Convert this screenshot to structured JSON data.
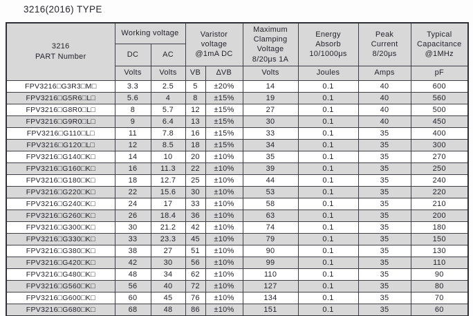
{
  "title": "3216(2016) TYPE",
  "colors": {
    "header_bg": "#d8d8d8",
    "alt_row_bg": "#d8d8d8",
    "row_bg": "#ffffff",
    "border": "#3d3d44",
    "text": "#23232b"
  },
  "table": {
    "header": {
      "part_number": "3216\nPART Number",
      "working_voltage": "Working voltage",
      "dc": "DC",
      "ac": "AC",
      "varistor_voltage": "Varistor\nvoltage\n@1mA DC",
      "max_clamping": "Maximum\nClamping\nVoltage\n8/20μs 1A",
      "energy_absorb": "Energy\nAbsorb\n10/1000μs",
      "peak_current": "Peak\nCurrent\n8/20μs",
      "typical_capacitance": "Typical\nCapacitance\n@1MHz",
      "units": [
        "Volts",
        "Volts",
        "VB",
        "∆VB",
        "Volts",
        "Joules",
        "Amps",
        "pF"
      ]
    },
    "rows": [
      [
        "FPV3216□G3R3□M□",
        "3.3",
        "2.5",
        "5",
        "±20%",
        "14",
        "0.1",
        "40",
        "600"
      ],
      [
        "FPV3216□G5R6□L□",
        "5.6",
        "4",
        "8",
        "±15%",
        "19",
        "0.1",
        "40",
        "560"
      ],
      [
        "FPV3216□G8R0□L□",
        "8",
        "5.7",
        "12",
        "±15%",
        "27",
        "0.1",
        "40",
        "500"
      ],
      [
        "FPV3216□G9R0□L□",
        "9",
        "6.4",
        "13",
        "±15%",
        "30",
        "0.1",
        "40",
        "450"
      ],
      [
        "FPV3216□G110□L□",
        "11",
        "7.8",
        "16",
        "±15%",
        "33",
        "0.1",
        "35",
        "400"
      ],
      [
        "FPV3216□G120□L□",
        "12",
        "8.5",
        "18",
        "±15%",
        "34",
        "0.1",
        "35",
        "300"
      ],
      [
        "FPV3216□G140□K□",
        "14",
        "10",
        "20",
        "±10%",
        "35",
        "0.1",
        "35",
        "270"
      ],
      [
        "FPV3216□G160□K□",
        "16",
        "11.3",
        "22",
        "±10%",
        "39",
        "0.1",
        "35",
        "250"
      ],
      [
        "FPV3216□G180□K□",
        "18",
        "12.7",
        "25",
        "±10%",
        "44",
        "0.1",
        "35",
        "240"
      ],
      [
        "FPV3216□G220□K□",
        "22",
        "15.6",
        "30",
        "±10%",
        "53",
        "0.1",
        "35",
        "220"
      ],
      [
        "FPV3216□G240□K□",
        "24",
        "17",
        "33",
        "±10%",
        "58",
        "0.1",
        "35",
        "210"
      ],
      [
        "FPV3216□G260□K□",
        "26",
        "18.4",
        "36",
        "±10%",
        "63",
        "0.1",
        "35",
        "200"
      ],
      [
        "FPV3216□G300□K□",
        "30",
        "21.2",
        "42",
        "±10%",
        "74",
        "0.1",
        "35",
        "180"
      ],
      [
        "FPV3216□G330□K□",
        "33",
        "23.3",
        "45",
        "±10%",
        "79",
        "0.1",
        "35",
        "150"
      ],
      [
        "FPV3216□G380□K□",
        "38",
        "27",
        "51",
        "±10%",
        "90",
        "0.1",
        "35",
        "130"
      ],
      [
        "FPV3216□G420□K□",
        "42",
        "30",
        "56",
        "±10%",
        "99",
        "0.1",
        "35",
        "110"
      ],
      [
        "FPV3216□G480□K□",
        "48",
        "34",
        "62",
        "±10%",
        "110",
        "0.1",
        "35",
        "90"
      ],
      [
        "FPV3216□G560□K□",
        "56",
        "40",
        "72",
        "±10%",
        "127",
        "0.1",
        "35",
        "80"
      ],
      [
        "FPV3216□G600□K□",
        "60",
        "45",
        "76",
        "±10%",
        "134",
        "0.1",
        "35",
        "70"
      ],
      [
        "FPV3216□G680□K□",
        "68",
        "48",
        "86",
        "±10%",
        "151",
        "0.1",
        "35",
        "60"
      ]
    ]
  }
}
